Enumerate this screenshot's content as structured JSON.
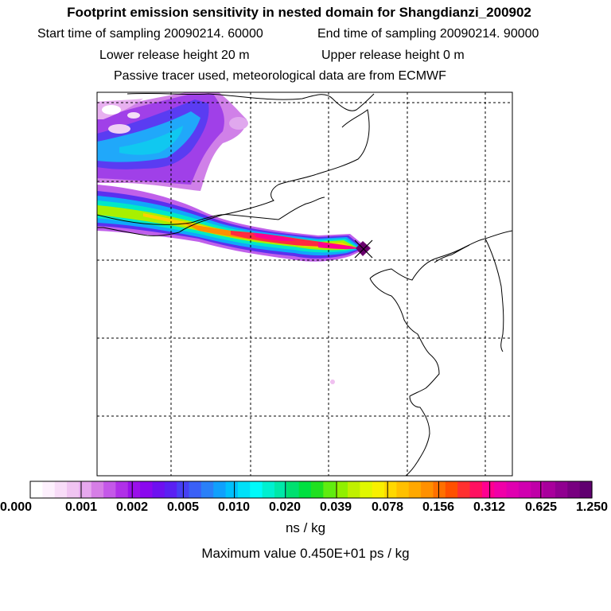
{
  "header": {
    "title": "Footprint emission sensitivity in nested domain for Shangdianzi_200902",
    "start_label": "Start time of sampling 20090214. 60000",
    "end_label": "End time of sampling 20090214. 90000",
    "lower_label": "Lower release height   20 m",
    "upper_label": "Upper release height    0 m",
    "note": "Passive tracer used, meteorological data are from ECMWF"
  },
  "colorbar": {
    "ticks": [
      "0.000",
      "0.001",
      "0.002",
      "0.005",
      "0.010",
      "0.020",
      "0.039",
      "0.078",
      "0.156",
      "0.312",
      "0.625",
      "1.250"
    ],
    "units": "ns / kg",
    "colors": [
      "#ffffff",
      "#fdf0fd",
      "#f8dcf8",
      "#f0c4f2",
      "#e6a8ee",
      "#d67ee6",
      "#c458e8",
      "#b030e8",
      "#9a10ea",
      "#8a08ee",
      "#6e10f0",
      "#5a20f2",
      "#4640f4",
      "#3a60f6",
      "#2a80f8",
      "#10a0fc",
      "#00c0fc",
      "#00e0f8",
      "#00fafa",
      "#00f0d0",
      "#00e8a8",
      "#00e070",
      "#00e040",
      "#20e020",
      "#60ec10",
      "#90f000",
      "#c0f000",
      "#e0f800",
      "#f8f000",
      "#ffd800",
      "#ffc000",
      "#ffa800",
      "#ff9000",
      "#ff7000",
      "#ff5000",
      "#ff3030",
      "#ff1060",
      "#ff0090",
      "#f000a8",
      "#e000b0",
      "#d000b0",
      "#c000a8",
      "#a8009c",
      "#900090",
      "#780080",
      "#600070"
    ]
  },
  "footer": {
    "max_value": "Maximum value  0.450E+01 ps / kg"
  }
}
